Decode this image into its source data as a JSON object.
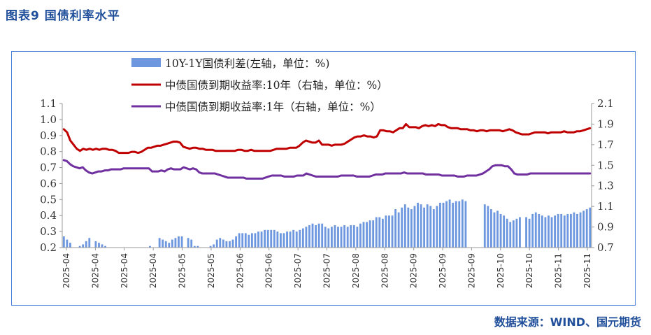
{
  "figure_title": "图表9  国债利率水平",
  "source": "数据来源：WIND、国元期货",
  "colors": {
    "bar": "#6d97de",
    "line10y": "#c00000",
    "line1y": "#7030a0",
    "frame": "#4a7fd6",
    "title": "#1f4e9a"
  },
  "chart_data": {
    "type": "bar+line",
    "title": "",
    "legend": [
      "10Y-1Y国债利差(左轴，单位：%)",
      "中债国债到期收益率:10年（右轴，单位：%）",
      "中债国债到期收益率:1年（右轴，单位：%）"
    ],
    "y_left": {
      "min": 0.2,
      "max": 1.1,
      "ticks": [
        "0.2",
        "0.3",
        "0.4",
        "0.5",
        "0.6",
        "0.7",
        "0.8",
        "0.9",
        "1.0",
        "1.1"
      ]
    },
    "y_right": {
      "min": 0.7,
      "max": 2.1,
      "ticks": [
        "0.7",
        "0.9",
        "1.1",
        "1.3",
        "1.5",
        "1.7",
        "1.9",
        "2.1"
      ]
    },
    "x_tick_labels": [
      "2025-04",
      "2025-04",
      "2025-04",
      "2025-04",
      "2025-05",
      "2025-05",
      "2025-06",
      "2025-06",
      "2025-07",
      "2025-07",
      "2025-08",
      "2025-08",
      "2025-09",
      "2025-09",
      "2025-09",
      "2025-10",
      "2025-10",
      "2025-11",
      "2025-11"
    ],
    "series": [
      {
        "name": "10Y-1Y国债利差",
        "axis": "left",
        "kind": "bar",
        "values": [
          0.27,
          0.25,
          0.23,
          0.2,
          0.2,
          0.21,
          0.22,
          0.24,
          0.26,
          0.2,
          0.24,
          0.23,
          0.22,
          0.21,
          0.2,
          0.2,
          0.2,
          0.19,
          0.19,
          0.19,
          0.2,
          0.2,
          0.2,
          0.2,
          0.2,
          0.2,
          0.2,
          0.21,
          0.2,
          0.2,
          0.26,
          0.25,
          0.24,
          0.23,
          0.25,
          0.26,
          0.27,
          0.27,
          0.2,
          0.26,
          0.25,
          0.21,
          0.21,
          0.2,
          0.2,
          0.2,
          0.21,
          0.22,
          0.25,
          0.26,
          0.25,
          0.24,
          0.24,
          0.25,
          0.27,
          0.29,
          0.29,
          0.29,
          0.28,
          0.29,
          0.29,
          0.3,
          0.3,
          0.31,
          0.31,
          0.31,
          0.31,
          0.3,
          0.29,
          0.29,
          0.3,
          0.3,
          0.31,
          0.3,
          0.31,
          0.32,
          0.33,
          0.34,
          0.35,
          0.34,
          0.35,
          0.35,
          0.33,
          0.32,
          0.33,
          0.34,
          0.33,
          0.33,
          0.34,
          0.33,
          0.34,
          0.34,
          0.33,
          0.35,
          0.36,
          0.36,
          0.37,
          0.37,
          0.39,
          0.39,
          0.38,
          0.4,
          0.4,
          0.4,
          0.44,
          0.42,
          0.45,
          0.47,
          0.45,
          0.44,
          0.46,
          0.48,
          0.47,
          0.45,
          0.47,
          0.46,
          0.44,
          0.46,
          0.48,
          0.48,
          0.49,
          0.5,
          0.48,
          0.49,
          0.49,
          0.5,
          0.49,
          0.19,
          0.19,
          0.19,
          0.19,
          0.19,
          0.47,
          0.46,
          0.44,
          0.42,
          0.43,
          0.41,
          0.4,
          0.38,
          0.36,
          0.37,
          0.38,
          0.39,
          0.2,
          0.39,
          0.38,
          0.41,
          0.42,
          0.41,
          0.4,
          0.39,
          0.4,
          0.39,
          0.4,
          0.41,
          0.41,
          0.4,
          0.41,
          0.41,
          0.42,
          0.41,
          0.42,
          0.43,
          0.44,
          0.45
        ]
      },
      {
        "name": "中债国债到期收益率:10年",
        "axis": "right",
        "kind": "line",
        "values": [
          1.85,
          1.82,
          1.74,
          1.7,
          1.66,
          1.64,
          1.66,
          1.65,
          1.66,
          1.65,
          1.66,
          1.65,
          1.66,
          1.66,
          1.65,
          1.65,
          1.64,
          1.62,
          1.62,
          1.62,
          1.62,
          1.63,
          1.63,
          1.62,
          1.63,
          1.65,
          1.67,
          1.67,
          1.68,
          1.69,
          1.69,
          1.7,
          1.71,
          1.72,
          1.73,
          1.73,
          1.72,
          1.68,
          1.67,
          1.66,
          1.67,
          1.67,
          1.66,
          1.66,
          1.65,
          1.65,
          1.65,
          1.64,
          1.64,
          1.64,
          1.64,
          1.64,
          1.64,
          1.64,
          1.65,
          1.65,
          1.64,
          1.64,
          1.65,
          1.64,
          1.64,
          1.64,
          1.64,
          1.64,
          1.64,
          1.65,
          1.66,
          1.66,
          1.66,
          1.66,
          1.67,
          1.67,
          1.67,
          1.69,
          1.72,
          1.74,
          1.73,
          1.72,
          1.72,
          1.74,
          1.7,
          1.7,
          1.7,
          1.69,
          1.7,
          1.7,
          1.7,
          1.71,
          1.73,
          1.75,
          1.77,
          1.78,
          1.78,
          1.79,
          1.78,
          1.78,
          1.77,
          1.78,
          1.84,
          1.84,
          1.83,
          1.83,
          1.82,
          1.84,
          1.86,
          1.86,
          1.9,
          1.87,
          1.87,
          1.87,
          1.86,
          1.88,
          1.89,
          1.88,
          1.89,
          1.88,
          1.9,
          1.89,
          1.89,
          1.87,
          1.86,
          1.86,
          1.86,
          1.85,
          1.85,
          1.85,
          1.84,
          1.84,
          1.83,
          1.84,
          1.84,
          1.83,
          1.84,
          1.84,
          1.84,
          1.84,
          1.83,
          1.84,
          1.85,
          1.84,
          1.82,
          1.81,
          1.8,
          1.8,
          1.8,
          1.81,
          1.82,
          1.82,
          1.82,
          1.82,
          1.81,
          1.82,
          1.82,
          1.82,
          1.82,
          1.83,
          1.82,
          1.82,
          1.82,
          1.83,
          1.83,
          1.84,
          1.85,
          1.86
        ]
      },
      {
        "name": "中债国债到期收益率:1年",
        "axis": "right",
        "kind": "line",
        "values": [
          1.55,
          1.54,
          1.51,
          1.49,
          1.48,
          1.47,
          1.48,
          1.45,
          1.43,
          1.42,
          1.43,
          1.44,
          1.44,
          1.45,
          1.45,
          1.46,
          1.46,
          1.46,
          1.46,
          1.47,
          1.47,
          1.47,
          1.47,
          1.47,
          1.47,
          1.47,
          1.47,
          1.47,
          1.44,
          1.44,
          1.44,
          1.45,
          1.44,
          1.46,
          1.47,
          1.46,
          1.46,
          1.46,
          1.48,
          1.47,
          1.46,
          1.47,
          1.46,
          1.43,
          1.42,
          1.42,
          1.42,
          1.42,
          1.42,
          1.41,
          1.4,
          1.39,
          1.38,
          1.38,
          1.38,
          1.38,
          1.38,
          1.38,
          1.37,
          1.37,
          1.37,
          1.37,
          1.37,
          1.37,
          1.38,
          1.39,
          1.4,
          1.4,
          1.4,
          1.4,
          1.39,
          1.39,
          1.39,
          1.39,
          1.4,
          1.4,
          1.4,
          1.42,
          1.41,
          1.4,
          1.39,
          1.39,
          1.39,
          1.39,
          1.39,
          1.39,
          1.39,
          1.39,
          1.4,
          1.4,
          1.4,
          1.4,
          1.4,
          1.39,
          1.39,
          1.39,
          1.39,
          1.39,
          1.4,
          1.41,
          1.41,
          1.41,
          1.42,
          1.42,
          1.42,
          1.42,
          1.42,
          1.42,
          1.43,
          1.42,
          1.42,
          1.42,
          1.42,
          1.42,
          1.42,
          1.41,
          1.41,
          1.41,
          1.41,
          1.41,
          1.4,
          1.4,
          1.4,
          1.4,
          1.4,
          1.39,
          1.39,
          1.39,
          1.4,
          1.4,
          1.4,
          1.4,
          1.41,
          1.42,
          1.44,
          1.46,
          1.49,
          1.5,
          1.5,
          1.5,
          1.49,
          1.49,
          1.46,
          1.42,
          1.41,
          1.41,
          1.41,
          1.41,
          1.42,
          1.42,
          1.42,
          1.42,
          1.42,
          1.42,
          1.42,
          1.42,
          1.42,
          1.42,
          1.42,
          1.42,
          1.42,
          1.42,
          1.42,
          1.42,
          1.42,
          1.42,
          1.42,
          1.42
        ]
      }
    ]
  }
}
